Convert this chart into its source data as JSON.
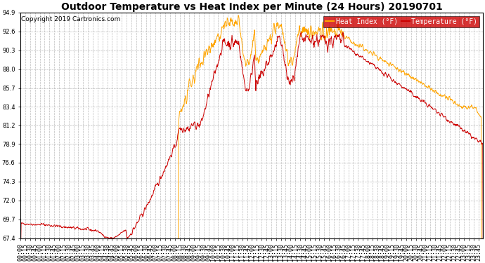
{
  "title": "Outdoor Temperature vs Heat Index per Minute (24 Hours) 20190701",
  "copyright": "Copyright 2019 Cartronics.com",
  "legend_heat": "Heat Index (°F)",
  "legend_temp": "Temperature (°F)",
  "ylim": [
    67.4,
    94.9
  ],
  "yticks": [
    67.4,
    69.7,
    72.0,
    74.3,
    76.6,
    78.9,
    81.2,
    83.4,
    85.7,
    88.0,
    90.3,
    92.6,
    94.9
  ],
  "heat_index_color": "#FFA500",
  "temp_color": "#CC0000",
  "bg_color": "#FFFFFF",
  "grid_color": "#AAAAAA",
  "title_fontsize": 10,
  "copyright_fontsize": 6.5,
  "legend_fontsize": 7,
  "tick_fontsize": 6
}
